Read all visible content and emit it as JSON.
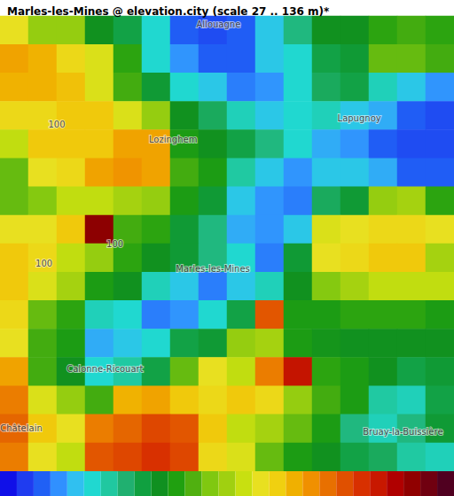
{
  "chart_data": {
    "type": "heatmap",
    "title": "Marles-les-Mines @ elevation.city (scale 27 .. 136 m)*",
    "elevation": [
      [
        90,
        80,
        80,
        65,
        60,
        48,
        35,
        33,
        35,
        45,
        55,
        65,
        65,
        70,
        72,
        70
      ],
      [
        100,
        98,
        92,
        88,
        70,
        48,
        40,
        35,
        35,
        45,
        48,
        60,
        62,
        75,
        75,
        72
      ],
      [
        98,
        98,
        96,
        88,
        72,
        62,
        48,
        45,
        38,
        40,
        48,
        58,
        60,
        50,
        45,
        40
      ],
      [
        92,
        92,
        95,
        95,
        88,
        80,
        65,
        58,
        50,
        45,
        48,
        50,
        45,
        42,
        35,
        33
      ],
      [
        85,
        95,
        95,
        95,
        100,
        100,
        68,
        65,
        60,
        55,
        48,
        42,
        40,
        35,
        33,
        33
      ],
      [
        75,
        90,
        92,
        100,
        102,
        100,
        72,
        68,
        52,
        45,
        40,
        45,
        45,
        42,
        35,
        35
      ],
      [
        75,
        78,
        85,
        85,
        82,
        80,
        68,
        62,
        45,
        40,
        38,
        58,
        62,
        80,
        82,
        70
      ],
      [
        90,
        90,
        95,
        128,
        72,
        70,
        62,
        55,
        42,
        40,
        45,
        88,
        90,
        92,
        92,
        90
      ],
      [
        95,
        92,
        85,
        80,
        70,
        65,
        62,
        55,
        48,
        38,
        62,
        90,
        92,
        95,
        95,
        82
      ],
      [
        95,
        88,
        82,
        68,
        65,
        50,
        45,
        38,
        45,
        50,
        65,
        78,
        82,
        85,
        85,
        85
      ],
      [
        92,
        75,
        70,
        50,
        48,
        38,
        40,
        48,
        60,
        110,
        68,
        68,
        70,
        70,
        70,
        68
      ],
      [
        90,
        72,
        68,
        42,
        45,
        48,
        60,
        62,
        80,
        82,
        68,
        66,
        65,
        65,
        65,
        65
      ],
      [
        100,
        72,
        65,
        48,
        52,
        60,
        75,
        90,
        85,
        105,
        120,
        70,
        68,
        65,
        60,
        62
      ],
      [
        105,
        88,
        80,
        72,
        98,
        100,
        95,
        92,
        95,
        92,
        80,
        72,
        68,
        52,
        50,
        60
      ],
      [
        108,
        95,
        90,
        105,
        108,
        112,
        110,
        95,
        85,
        82,
        75,
        68,
        55,
        50,
        55,
        62
      ],
      [
        105,
        90,
        85,
        110,
        112,
        115,
        112,
        92,
        88,
        75,
        68,
        65,
        60,
        58,
        52,
        50
      ]
    ],
    "color_scale": {
      "range": [
        27,
        136
      ],
      "ticks": [
        27,
        31,
        35,
        40,
        44,
        48,
        52,
        56,
        61,
        65,
        69,
        73,
        77,
        81,
        86,
        90,
        94,
        98,
        102,
        107,
        111,
        115,
        119,
        123,
        128,
        132,
        136
      ],
      "colors": [
        "#1010e8",
        "#1f3cf0",
        "#2060f5",
        "#3090ff",
        "#30c0f0",
        "#20d8d0",
        "#20c8a0",
        "#20b070",
        "#10a040",
        "#109020",
        "#20a010",
        "#50b010",
        "#80c810",
        "#a0d010",
        "#c8e010",
        "#e8e020",
        "#f0d010",
        "#f0b000",
        "#f09000",
        "#e87000",
        "#e05000",
        "#d83000",
        "#c81800",
        "#b00000",
        "#900000",
        "#700010",
        "#500020"
      ]
    },
    "places": [
      {
        "name": "Allouagne",
        "x": 7.7,
        "y": 0.3
      },
      {
        "name": "Lapugnoy",
        "x": 12.66,
        "y": 3.6
      },
      {
        "name": "Lozinghem",
        "x": 6.1,
        "y": 4.35
      },
      {
        "name": "Marles-les-Mines",
        "x": 7.5,
        "y": 8.9
      },
      {
        "name": "Calonne-Ricouart",
        "x": 3.7,
        "y": 12.4
      },
      {
        "name": "Châtelain",
        "x": 0.75,
        "y": 14.5
      },
      {
        "name": "Bruay-la-Buissière",
        "x": 14.2,
        "y": 14.6
      },
      {
        "name": "100",
        "x": 2.0,
        "y": 3.8
      },
      {
        "name": "100",
        "x": 1.55,
        "y": 8.7
      },
      {
        "name": "100",
        "x": 4.05,
        "y": 8.0
      }
    ]
  }
}
